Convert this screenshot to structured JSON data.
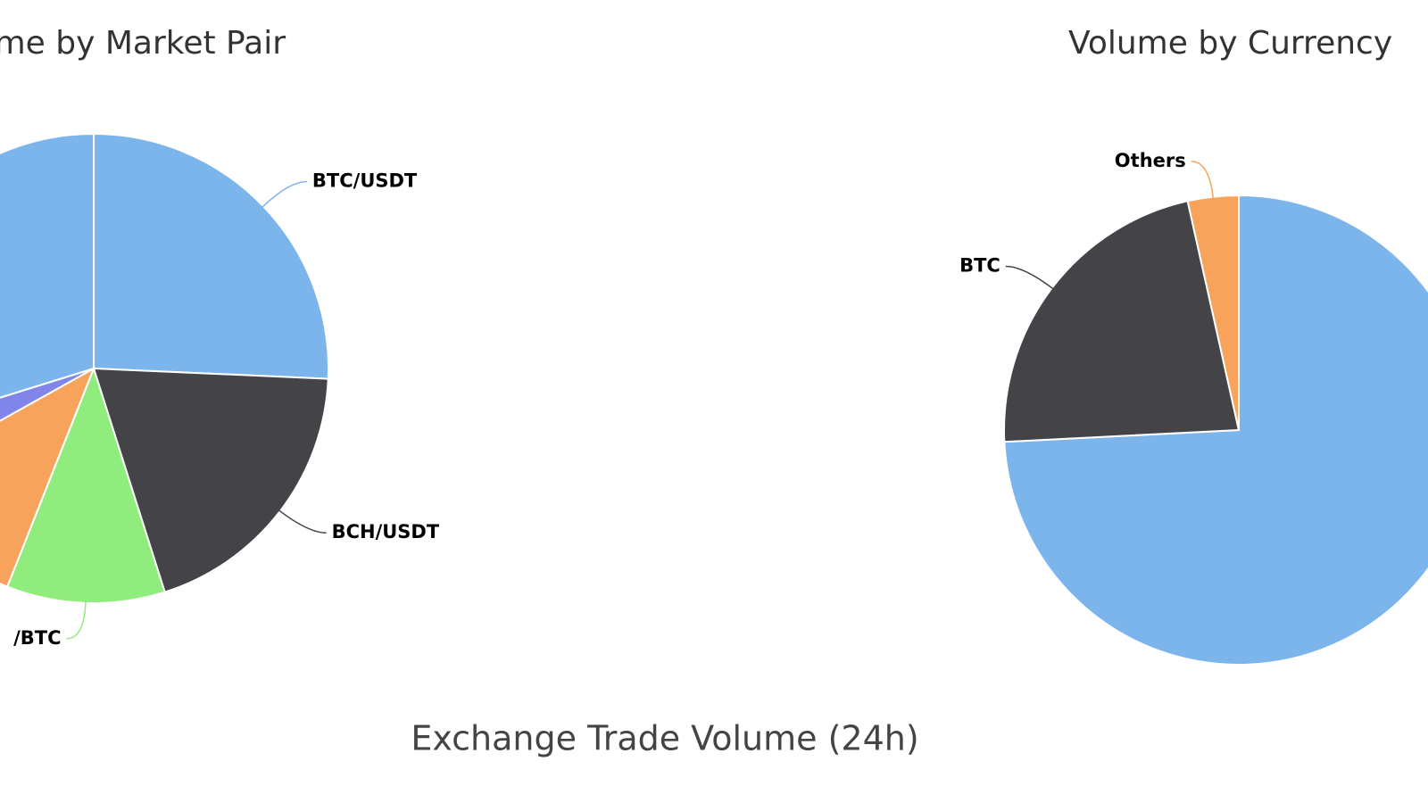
{
  "chart_data": [
    {
      "type": "pie",
      "title": "Volume by Market Pair",
      "categories": [
        "BTC/USDT",
        "BCH/USDT",
        "/BTC",
        null,
        null,
        null
      ],
      "values": [
        25.7,
        19.4,
        10.9,
        10.9,
        3.3,
        29.8
      ],
      "colors": [
        "#7cb5ec",
        "#434348",
        "#90ed7d",
        "#f7a35c",
        "#8085e9",
        "#7cb5ec"
      ]
    },
    {
      "type": "pie",
      "title": "Volume by Currency",
      "categories": [
        null,
        "BTC",
        "Others"
      ],
      "values": [
        74.2,
        22.3,
        3.5
      ],
      "colors": [
        "#7cb5ec",
        "#434348",
        "#f7a35c"
      ]
    }
  ],
  "caption": "Exchange Trade Volume (24h)"
}
